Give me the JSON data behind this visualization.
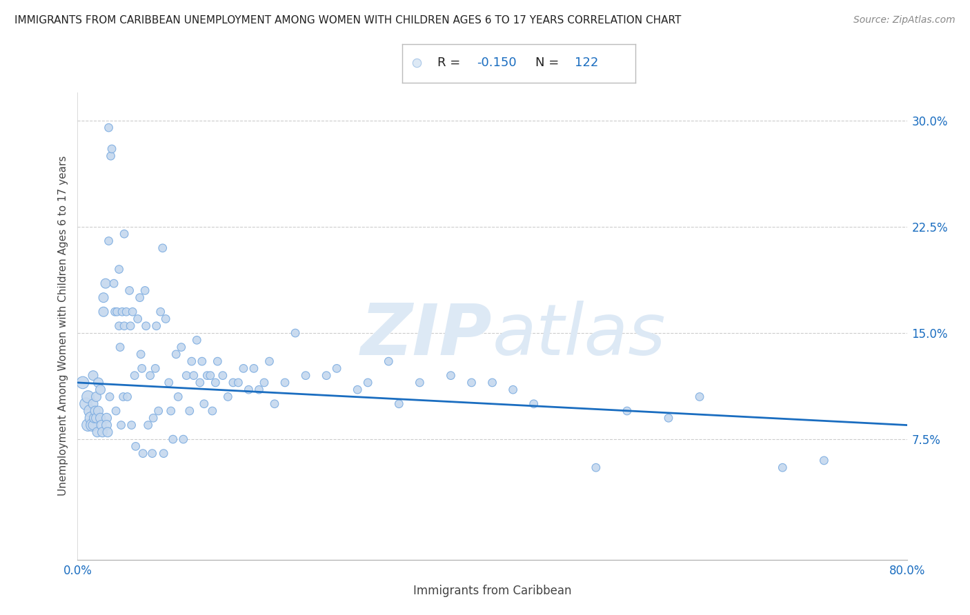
{
  "title": "IMMIGRANTS FROM CARIBBEAN UNEMPLOYMENT AMONG WOMEN WITH CHILDREN AGES 6 TO 17 YEARS CORRELATION CHART",
  "source": "Source: ZipAtlas.com",
  "xlabel": "Immigrants from Caribbean",
  "ylabel": "Unemployment Among Women with Children Ages 6 to 17 years",
  "R": -0.15,
  "N": 122,
  "xlim": [
    0.0,
    0.8
  ],
  "ylim": [
    -0.01,
    0.32
  ],
  "xticks": [
    0.0,
    0.2,
    0.4,
    0.6,
    0.8
  ],
  "xtick_labels": [
    "0.0%",
    "",
    "",
    "",
    "80.0%"
  ],
  "yticks_right": [
    0.075,
    0.15,
    0.225,
    0.3
  ],
  "ytick_labels_right": [
    "7.5%",
    "15.0%",
    "22.5%",
    "30.0%"
  ],
  "dot_color": "#c5d8ee",
  "dot_edge_color": "#7aabe0",
  "line_color": "#1a6dc0",
  "background_color": "#ffffff",
  "watermark_zip": "ZIP",
  "watermark_atlas": "atlas",
  "watermark_color": "#dde9f5",
  "line_y0": 0.115,
  "line_y1": 0.085,
  "scatter_x": [
    0.005,
    0.008,
    0.01,
    0.01,
    0.012,
    0.013,
    0.014,
    0.015,
    0.015,
    0.015,
    0.016,
    0.017,
    0.018,
    0.018,
    0.019,
    0.02,
    0.02,
    0.022,
    0.022,
    0.023,
    0.024,
    0.025,
    0.025,
    0.027,
    0.028,
    0.028,
    0.029,
    0.03,
    0.03,
    0.031,
    0.032,
    0.033,
    0.035,
    0.036,
    0.037,
    0.038,
    0.04,
    0.04,
    0.041,
    0.042,
    0.043,
    0.044,
    0.045,
    0.045,
    0.047,
    0.048,
    0.05,
    0.051,
    0.052,
    0.053,
    0.055,
    0.056,
    0.058,
    0.06,
    0.061,
    0.062,
    0.063,
    0.065,
    0.066,
    0.068,
    0.07,
    0.072,
    0.073,
    0.075,
    0.076,
    0.078,
    0.08,
    0.082,
    0.083,
    0.085,
    0.088,
    0.09,
    0.092,
    0.095,
    0.097,
    0.1,
    0.102,
    0.105,
    0.108,
    0.11,
    0.112,
    0.115,
    0.118,
    0.12,
    0.122,
    0.125,
    0.128,
    0.13,
    0.133,
    0.135,
    0.14,
    0.145,
    0.15,
    0.155,
    0.16,
    0.165,
    0.17,
    0.175,
    0.18,
    0.185,
    0.19,
    0.2,
    0.21,
    0.22,
    0.24,
    0.25,
    0.27,
    0.28,
    0.3,
    0.31,
    0.33,
    0.36,
    0.38,
    0.4,
    0.42,
    0.44,
    0.5,
    0.53,
    0.57,
    0.6,
    0.68,
    0.72
  ],
  "scatter_y": [
    0.115,
    0.1,
    0.105,
    0.085,
    0.095,
    0.09,
    0.085,
    0.12,
    0.1,
    0.085,
    0.09,
    0.095,
    0.105,
    0.09,
    0.08,
    0.115,
    0.095,
    0.11,
    0.09,
    0.085,
    0.08,
    0.175,
    0.165,
    0.185,
    0.09,
    0.085,
    0.08,
    0.295,
    0.215,
    0.105,
    0.275,
    0.28,
    0.185,
    0.165,
    0.095,
    0.165,
    0.195,
    0.155,
    0.14,
    0.085,
    0.165,
    0.105,
    0.22,
    0.155,
    0.165,
    0.105,
    0.18,
    0.155,
    0.085,
    0.165,
    0.12,
    0.07,
    0.16,
    0.175,
    0.135,
    0.125,
    0.065,
    0.18,
    0.155,
    0.085,
    0.12,
    0.065,
    0.09,
    0.125,
    0.155,
    0.095,
    0.165,
    0.21,
    0.065,
    0.16,
    0.115,
    0.095,
    0.075,
    0.135,
    0.105,
    0.14,
    0.075,
    0.12,
    0.095,
    0.13,
    0.12,
    0.145,
    0.115,
    0.13,
    0.1,
    0.12,
    0.12,
    0.095,
    0.115,
    0.13,
    0.12,
    0.105,
    0.115,
    0.115,
    0.125,
    0.11,
    0.125,
    0.11,
    0.115,
    0.13,
    0.1,
    0.115,
    0.15,
    0.12,
    0.12,
    0.125,
    0.11,
    0.115,
    0.13,
    0.1,
    0.115,
    0.12,
    0.115,
    0.115,
    0.11,
    0.1,
    0.055,
    0.095,
    0.09,
    0.105,
    0.055,
    0.06
  ]
}
